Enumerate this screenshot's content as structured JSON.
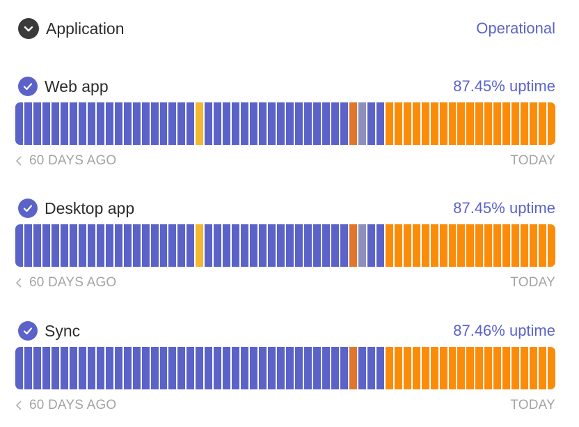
{
  "group": {
    "title": "Application",
    "status": "Operational",
    "icon": "chevron-down-icon"
  },
  "colors": {
    "operational": "#5b63c9",
    "minor": "#f3b731",
    "partial": "#e1762b",
    "maintenance": "#8f8fbd",
    "major": "#fb8c0a"
  },
  "footer": {
    "left": "60 DAYS AGO",
    "right": "TODAY"
  },
  "components": [
    {
      "name": "Web app",
      "uptime": "87.45% uptime",
      "days": [
        "o",
        "o",
        "o",
        "o",
        "o",
        "o",
        "o",
        "o",
        "o",
        "o",
        "o",
        "o",
        "o",
        "o",
        "o",
        "o",
        "o",
        "o",
        "o",
        "o",
        "m",
        "o",
        "o",
        "o",
        "o",
        "o",
        "o",
        "o",
        "o",
        "o",
        "o",
        "o",
        "o",
        "o",
        "o",
        "o",
        "o",
        "p",
        "x",
        "o",
        "o",
        "M",
        "M",
        "M",
        "M",
        "M",
        "M",
        "M",
        "M",
        "M",
        "M",
        "M",
        "M",
        "M",
        "M",
        "M",
        "M",
        "M",
        "M",
        "M"
      ]
    },
    {
      "name": "Desktop app",
      "uptime": "87.45% uptime",
      "days": [
        "o",
        "o",
        "o",
        "o",
        "o",
        "o",
        "o",
        "o",
        "o",
        "o",
        "o",
        "o",
        "o",
        "o",
        "o",
        "o",
        "o",
        "o",
        "o",
        "o",
        "m",
        "o",
        "o",
        "o",
        "o",
        "o",
        "o",
        "o",
        "o",
        "o",
        "o",
        "o",
        "o",
        "o",
        "o",
        "o",
        "o",
        "p",
        "x",
        "o",
        "o",
        "M",
        "M",
        "M",
        "M",
        "M",
        "M",
        "M",
        "M",
        "M",
        "M",
        "M",
        "M",
        "M",
        "M",
        "M",
        "M",
        "M",
        "M",
        "M"
      ]
    },
    {
      "name": "Sync",
      "uptime": "87.46% uptime",
      "days": [
        "o",
        "o",
        "o",
        "o",
        "o",
        "o",
        "o",
        "o",
        "o",
        "o",
        "o",
        "o",
        "o",
        "o",
        "o",
        "o",
        "o",
        "o",
        "o",
        "o",
        "o",
        "o",
        "o",
        "o",
        "o",
        "o",
        "o",
        "o",
        "o",
        "o",
        "o",
        "o",
        "o",
        "o",
        "o",
        "o",
        "o",
        "p",
        "o",
        "o",
        "o",
        "M",
        "M",
        "M",
        "M",
        "M",
        "M",
        "M",
        "M",
        "M",
        "M",
        "M",
        "M",
        "M",
        "M",
        "M",
        "M",
        "M",
        "M",
        "M"
      ]
    }
  ]
}
